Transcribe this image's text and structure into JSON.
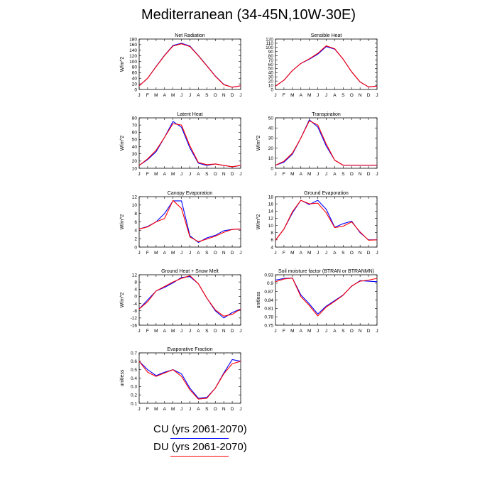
{
  "title": "Mediterranean (34-45N,10W-30E)",
  "legend": [
    {
      "label": "CU (yrs 2061-2070)",
      "color": "#0000ff"
    },
    {
      "label": "DU (yrs 2061-2070)",
      "color": "#ff0000"
    }
  ],
  "months": [
    "J",
    "F",
    "M",
    "A",
    "M",
    "J",
    "J",
    "A",
    "S",
    "O",
    "N",
    "D",
    "J"
  ],
  "chart_data": [
    {
      "type": "line",
      "title": "Net Radiation",
      "ylabel": "W/m^2",
      "ylim": [
        0,
        180
      ],
      "yticks": [
        0,
        20,
        40,
        60,
        80,
        100,
        120,
        140,
        160,
        180
      ],
      "series": [
        {
          "name": "CU (yrs 2061-2070)",
          "color": "#0000ff",
          "values": [
            13,
            40,
            82,
            122,
            157,
            165,
            155,
            121,
            85,
            48,
            18,
            8,
            13
          ]
        },
        {
          "name": "DU (yrs 2061-2070)",
          "color": "#ff0000",
          "values": [
            13,
            40,
            81,
            121,
            155,
            163,
            153,
            120,
            84,
            47,
            17,
            8,
            13
          ]
        }
      ]
    },
    {
      "type": "line",
      "title": "Sensible Heat",
      "ylabel": "",
      "ylim": [
        0,
        120
      ],
      "yticks": [
        0,
        10,
        20,
        30,
        40,
        50,
        60,
        70,
        80,
        90,
        100,
        110,
        120
      ],
      "series": [
        {
          "name": "CU (yrs 2061-2070)",
          "color": "#0000ff",
          "values": [
            8,
            22,
            45,
            62,
            72,
            84,
            102,
            96,
            72,
            42,
            18,
            6,
            8
          ]
        },
        {
          "name": "DU (yrs 2061-2070)",
          "color": "#ff0000",
          "values": [
            8,
            22,
            45,
            62,
            73,
            86,
            104,
            97,
            72,
            42,
            18,
            6,
            8
          ]
        }
      ]
    },
    {
      "type": "line",
      "title": "Latent Heat",
      "ylabel": "W/m^2",
      "ylim": [
        10,
        80
      ],
      "yticks": [
        10,
        20,
        30,
        40,
        50,
        60,
        70,
        80
      ],
      "series": [
        {
          "name": "CU (yrs 2061-2070)",
          "color": "#0000ff",
          "values": [
            14,
            22,
            33,
            53,
            75,
            67,
            38,
            17,
            14,
            16,
            14,
            12,
            14
          ]
        },
        {
          "name": "DU (yrs 2061-2070)",
          "color": "#ff0000",
          "values": [
            14,
            23,
            35,
            53,
            72,
            70,
            41,
            18,
            15,
            16,
            14,
            12,
            14
          ]
        }
      ]
    },
    {
      "type": "line",
      "title": "Transpiration",
      "ylabel": "W/m^2",
      "ylim": [
        0,
        50
      ],
      "yticks": [
        0,
        10,
        20,
        30,
        40,
        50
      ],
      "series": [
        {
          "name": "CU (yrs 2061-2070)",
          "color": "#0000ff",
          "values": [
            3,
            6,
            14,
            30,
            48,
            41,
            22,
            8,
            3,
            3,
            3,
            3,
            3
          ]
        },
        {
          "name": "DU (yrs 2061-2070)",
          "color": "#ff0000",
          "values": [
            3,
            7,
            15,
            30,
            47,
            43,
            24,
            8,
            3,
            3,
            3,
            3,
            3
          ]
        }
      ]
    },
    {
      "type": "line",
      "title": "Canopy Evaporation",
      "ylabel": "W/m^2",
      "ylim": [
        0,
        12
      ],
      "yticks": [
        0,
        2,
        4,
        6,
        8,
        10,
        12
      ],
      "series": [
        {
          "name": "CU (yrs 2061-2070)",
          "color": "#0000ff",
          "values": [
            4.3,
            4.9,
            6.0,
            8.0,
            11.0,
            11.0,
            2.7,
            1.1,
            2.2,
            2.8,
            3.9,
            4.2,
            4.3
          ]
        },
        {
          "name": "DU (yrs 2061-2070)",
          "color": "#ff0000",
          "values": [
            4.3,
            4.8,
            6.0,
            6.8,
            11.1,
            9.2,
            2.4,
            1.3,
            1.9,
            2.6,
            3.5,
            4.2,
            4.3
          ]
        }
      ]
    },
    {
      "type": "line",
      "title": "Ground Evaporation",
      "ylabel": "W/m^2",
      "ylim": [
        4,
        18
      ],
      "yticks": [
        4,
        6,
        8,
        10,
        12,
        14,
        16,
        18
      ],
      "series": [
        {
          "name": "CU (yrs 2061-2070)",
          "color": "#0000ff",
          "values": [
            5.9,
            9.0,
            13.5,
            17.0,
            15.8,
            17.0,
            14.5,
            9.5,
            10.5,
            11.2,
            8.0,
            6.0,
            6.0
          ]
        },
        {
          "name": "DU (yrs 2061-2070)",
          "color": "#ff0000",
          "values": [
            5.9,
            9.0,
            13.8,
            17.0,
            16.0,
            16.2,
            13.5,
            9.4,
            9.8,
            11.0,
            8.2,
            5.9,
            6.0
          ]
        }
      ]
    },
    {
      "type": "line",
      "title": "Ground Heat + Snow Melt",
      "ylabel": "W/m^2",
      "ylim": [
        -16,
        12
      ],
      "yticks": [
        -16,
        -12,
        -8,
        -4,
        0,
        4,
        8,
        12
      ],
      "series": [
        {
          "name": "CU (yrs 2061-2070)",
          "color": "#0000ff",
          "values": [
            -7,
            -2,
            3,
            5,
            7.5,
            10.5,
            11,
            7,
            -1,
            -8,
            -12,
            -9,
            -7
          ]
        },
        {
          "name": "DU (yrs 2061-2070)",
          "color": "#ff0000",
          "values": [
            -7,
            -3,
            3,
            5.5,
            8,
            10,
            11.5,
            7,
            -1,
            -7.5,
            -11,
            -10,
            -7
          ]
        }
      ]
    },
    {
      "type": "line",
      "title": "Soil moisture factor (BTRAN or BTRANMN)",
      "ylabel": "unitless",
      "ylim": [
        0.75,
        0.93
      ],
      "yticks": [
        0.75,
        0.78,
        0.81,
        0.84,
        0.87,
        0.9,
        0.93
      ],
      "series": [
        {
          "name": "CU (yrs 2061-2070)",
          "color": "#0000ff",
          "values": [
            0.911,
            0.917,
            0.918,
            0.858,
            0.826,
            0.79,
            0.818,
            0.838,
            0.858,
            0.889,
            0.909,
            0.907,
            0.905
          ]
        },
        {
          "name": "DU (yrs 2061-2070)",
          "color": "#ff0000",
          "values": [
            0.905,
            0.915,
            0.918,
            0.852,
            0.82,
            0.783,
            0.815,
            0.835,
            0.857,
            0.89,
            0.907,
            0.911,
            0.917
          ]
        }
      ]
    },
    {
      "type": "line",
      "title": "Evaporative Fraction",
      "ylabel": "unitless",
      "ylim": [
        0.1,
        0.7
      ],
      "yticks": [
        0.1,
        0.2,
        0.3,
        0.4,
        0.5,
        0.6,
        0.7
      ],
      "series": [
        {
          "name": "CU (yrs 2061-2070)",
          "color": "#0000ff",
          "values": [
            0.6,
            0.5,
            0.43,
            0.47,
            0.5,
            0.45,
            0.28,
            0.16,
            0.17,
            0.28,
            0.46,
            0.62,
            0.6
          ]
        },
        {
          "name": "DU (yrs 2061-2070)",
          "color": "#ff0000",
          "values": [
            0.6,
            0.47,
            0.42,
            0.46,
            0.5,
            0.42,
            0.26,
            0.15,
            0.16,
            0.28,
            0.45,
            0.57,
            0.6
          ]
        }
      ]
    }
  ]
}
